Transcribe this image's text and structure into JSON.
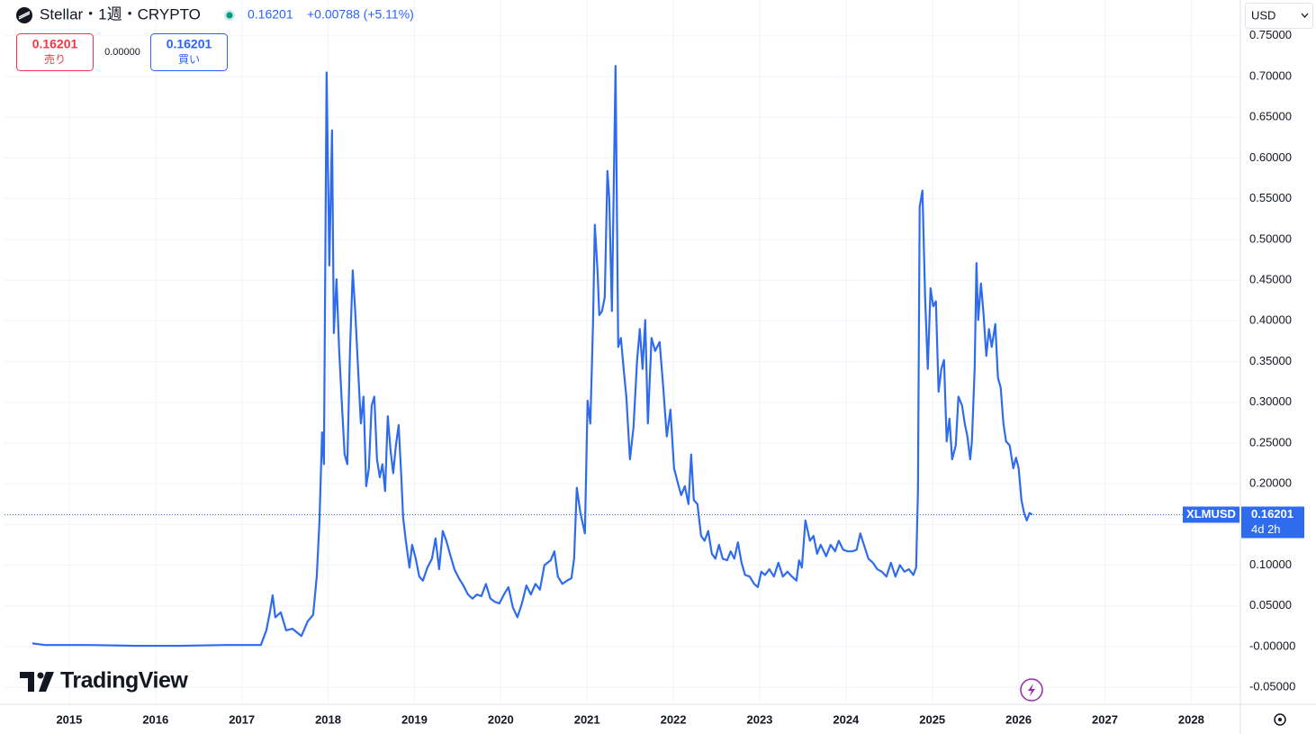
{
  "header": {
    "symbol": "Stellar・1週・CRYPTO",
    "price": "0.16201",
    "change": "+0.00788 (+5.11%)",
    "sell_price": "0.16201",
    "sell": "売り",
    "spread": "0.00000",
    "buy_price": "0.16201",
    "buy": "買い",
    "currency": "USD",
    "brand": "TradingView"
  },
  "chart_data": {
    "type": "line",
    "xlim": [
      2014.25,
      2028.57
    ],
    "xticks": [
      2015,
      2016,
      2017,
      2018,
      2019,
      2020,
      2021,
      2022,
      2023,
      2024,
      2025,
      2026,
      2027,
      2028
    ],
    "ylim": [
      -0.0708,
      0.794
    ],
    "yticks": [
      {
        "value": -0.05,
        "label": "-0.05000"
      },
      {
        "value": 0,
        "label": "-0.00000"
      },
      {
        "value": 0.05,
        "label": "0.05000"
      },
      {
        "value": 0.1,
        "label": "0.10000"
      },
      {
        "value": 0.15,
        "label": "0.15000"
      },
      {
        "value": 0.2,
        "label": "0.20000"
      },
      {
        "value": 0.25,
        "label": "0.25000"
      },
      {
        "value": 0.3,
        "label": "0.30000"
      },
      {
        "value": 0.35,
        "label": "0.35000"
      },
      {
        "value": 0.4,
        "label": "0.40000"
      },
      {
        "value": 0.45,
        "label": "0.45000"
      },
      {
        "value": 0.5,
        "label": "0.50000"
      },
      {
        "value": 0.55,
        "label": "0.55000"
      },
      {
        "value": 0.6,
        "label": "0.60000"
      },
      {
        "value": 0.65,
        "label": "0.65000"
      },
      {
        "value": 0.7,
        "label": "0.70000"
      },
      {
        "value": 0.75,
        "label": "0.75000"
      }
    ],
    "grid": true,
    "last_price": {
      "value": 0.16201,
      "label": "0.16201",
      "countdown": "4d 2h"
    },
    "series": [
      {
        "name": "XLMUSD",
        "color": "#2f6bed",
        "x": [
          2014.572,
          2014.718,
          2015.24,
          2015.761,
          2016.283,
          2016.804,
          2017.221,
          2017.284,
          2017.325,
          2017.357,
          2017.388,
          2017.451,
          2017.513,
          2017.586,
          2017.69,
          2017.763,
          2017.826,
          2017.868,
          2017.899,
          2017.93,
          2017.951,
          2017.982,
          2018.014,
          2018.045,
          2018.066,
          2018.097,
          2018.128,
          2018.16,
          2018.191,
          2018.222,
          2018.253,
          2018.285,
          2018.316,
          2018.347,
          2018.379,
          2018.41,
          2018.441,
          2018.472,
          2018.504,
          2018.535,
          2018.566,
          2018.598,
          2018.629,
          2018.66,
          2018.691,
          2018.723,
          2018.754,
          2018.785,
          2018.817,
          2018.848,
          2018.869,
          2018.9,
          2018.942,
          2018.973,
          2019.015,
          2019.056,
          2019.098,
          2019.15,
          2019.203,
          2019.244,
          2019.286,
          2019.328,
          2019.369,
          2019.411,
          2019.463,
          2019.515,
          2019.567,
          2019.62,
          2019.672,
          2019.724,
          2019.776,
          2019.828,
          2019.88,
          2019.932,
          2019.984,
          2020.037,
          2020.089,
          2020.141,
          2020.193,
          2020.245,
          2020.297,
          2020.349,
          2020.402,
          2020.454,
          2020.506,
          2020.579,
          2020.621,
          2020.662,
          2020.714,
          2020.767,
          2020.819,
          2020.85,
          2020.881,
          2020.923,
          2020.975,
          2021.006,
          2021.038,
          2021.069,
          2021.09,
          2021.121,
          2021.142,
          2021.173,
          2021.205,
          2021.236,
          2021.257,
          2021.288,
          2021.33,
          2021.361,
          2021.392,
          2021.424,
          2021.455,
          2021.497,
          2021.538,
          2021.58,
          2021.611,
          2021.643,
          2021.674,
          2021.705,
          2021.747,
          2021.789,
          2021.841,
          2021.883,
          2021.924,
          2021.966,
          2022.008,
          2022.049,
          2022.091,
          2022.133,
          2022.175,
          2022.206,
          2022.237,
          2022.279,
          2022.321,
          2022.362,
          2022.404,
          2022.446,
          2022.487,
          2022.529,
          2022.571,
          2022.623,
          2022.664,
          2022.706,
          2022.748,
          2022.79,
          2022.831,
          2022.884,
          2022.936,
          2022.978,
          2023.019,
          2023.061,
          2023.113,
          2023.165,
          2023.217,
          2023.269,
          2023.322,
          2023.374,
          2023.426,
          2023.457,
          2023.489,
          2023.53,
          2023.582,
          2023.624,
          2023.666,
          2023.707,
          2023.77,
          2023.822,
          2023.874,
          2023.916,
          2023.968,
          2024.02,
          2024.072,
          2024.124,
          2024.166,
          2024.208,
          2024.26,
          2024.312,
          2024.364,
          2024.416,
          2024.469,
          2024.521,
          2024.573,
          2024.625,
          2024.677,
          2024.729,
          2024.781,
          2024.813,
          2024.834,
          2024.854,
          2024.886,
          2024.917,
          2024.948,
          2024.98,
          2025.011,
          2025.042,
          2025.073,
          2025.105,
          2025.136,
          2025.167,
          2025.199,
          2025.23,
          2025.272,
          2025.303,
          2025.345,
          2025.376,
          2025.407,
          2025.439,
          2025.459,
          2025.491,
          2025.512,
          2025.532,
          2025.564,
          2025.595,
          2025.626,
          2025.657,
          2025.689,
          2025.73,
          2025.761,
          2025.793,
          2025.824,
          2025.855,
          2025.897,
          2025.939,
          2025.97,
          2026.001,
          2026.033,
          2026.064,
          2026.095,
          2026.127,
          2026.158
        ],
        "values": [
          0.004,
          0.002,
          0.002,
          0.001,
          0.001,
          0.002,
          0.002,
          0.02,
          0.042,
          0.063,
          0.036,
          0.042,
          0.02,
          0.022,
          0.013,
          0.031,
          0.039,
          0.086,
          0.153,
          0.263,
          0.224,
          0.705,
          0.468,
          0.634,
          0.385,
          0.451,
          0.363,
          0.296,
          0.236,
          0.224,
          0.363,
          0.462,
          0.407,
          0.341,
          0.274,
          0.307,
          0.197,
          0.219,
          0.296,
          0.307,
          0.23,
          0.208,
          0.224,
          0.191,
          0.283,
          0.241,
          0.213,
          0.247,
          0.272,
          0.208,
          0.158,
          0.13,
          0.097,
          0.125,
          0.108,
          0.086,
          0.081,
          0.097,
          0.108,
          0.133,
          0.095,
          0.142,
          0.13,
          0.114,
          0.095,
          0.084,
          0.075,
          0.064,
          0.059,
          0.064,
          0.062,
          0.077,
          0.059,
          0.055,
          0.053,
          0.064,
          0.073,
          0.048,
          0.036,
          0.053,
          0.075,
          0.064,
          0.077,
          0.07,
          0.1,
          0.106,
          0.117,
          0.086,
          0.077,
          0.081,
          0.084,
          0.108,
          0.195,
          0.164,
          0.139,
          0.302,
          0.274,
          0.396,
          0.518,
          0.462,
          0.407,
          0.412,
          0.429,
          0.584,
          0.551,
          0.412,
          0.713,
          0.368,
          0.379,
          0.341,
          0.307,
          0.23,
          0.269,
          0.352,
          0.39,
          0.341,
          0.401,
          0.274,
          0.379,
          0.363,
          0.374,
          0.318,
          0.258,
          0.291,
          0.219,
          0.202,
          0.186,
          0.197,
          0.175,
          0.236,
          0.18,
          0.175,
          0.136,
          0.13,
          0.142,
          0.114,
          0.108,
          0.125,
          0.108,
          0.106,
          0.117,
          0.108,
          0.128,
          0.103,
          0.088,
          0.086,
          0.077,
          0.073,
          0.092,
          0.088,
          0.095,
          0.086,
          0.103,
          0.086,
          0.092,
          0.086,
          0.081,
          0.106,
          0.097,
          0.155,
          0.13,
          0.136,
          0.114,
          0.125,
          0.111,
          0.125,
          0.117,
          0.13,
          0.119,
          0.117,
          0.117,
          0.119,
          0.139,
          0.125,
          0.108,
          0.103,
          0.095,
          0.092,
          0.086,
          0.103,
          0.086,
          0.1,
          0.092,
          0.095,
          0.088,
          0.097,
          0.191,
          0.54,
          0.56,
          0.429,
          0.341,
          0.44,
          0.418,
          0.424,
          0.313,
          0.341,
          0.352,
          0.252,
          0.28,
          0.23,
          0.247,
          0.307,
          0.296,
          0.274,
          0.258,
          0.23,
          0.252,
          0.341,
          0.471,
          0.401,
          0.446,
          0.407,
          0.357,
          0.39,
          0.368,
          0.396,
          0.33,
          0.318,
          0.274,
          0.252,
          0.247,
          0.219,
          0.232,
          0.219,
          0.18,
          0.164,
          0.155,
          0.164,
          0.16201
        ]
      }
    ]
  }
}
